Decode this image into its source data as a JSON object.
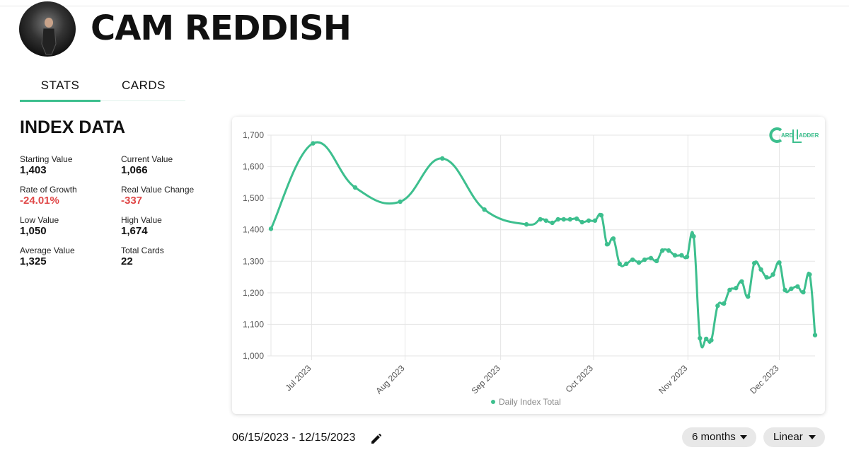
{
  "header": {
    "name": "CAM REDDISH"
  },
  "tabs": [
    "STATS",
    "CARDS"
  ],
  "index": {
    "title": "INDEX DATA",
    "stats": [
      {
        "label": "Starting Value",
        "value": "1,403"
      },
      {
        "label": "Current Value",
        "value": "1,066"
      },
      {
        "label": "Rate of Growth",
        "value": "-24.01%"
      },
      {
        "label": "Real Value Change",
        "value": "-337"
      },
      {
        "label": "Low Value",
        "value": "1,050"
      },
      {
        "label": "High Value",
        "value": "1,674"
      },
      {
        "label": "Average Value",
        "value": "1,325"
      },
      {
        "label": "Total Cards",
        "value": "22"
      }
    ]
  },
  "logo": [
    "ARD",
    "ADDER"
  ],
  "chart_data": {
    "type": "line",
    "x": [
      0,
      14,
      28,
      43,
      57,
      71,
      85,
      89.6,
      91.5,
      93.6,
      95.5,
      97.4,
      99.5,
      101.7,
      103.5,
      105.7,
      107.8,
      109.9,
      111.8,
      113.9,
      116,
      118.2,
      120.3,
      122.4,
      124.3,
      126.4,
      128.3,
      130.2,
      132.3,
      134.4,
      136.6,
      138.4,
      140.6,
      142.7,
      144.8,
      146.5,
      148.6,
      150.7,
      152.6,
      154.7,
      156.6,
      158.7,
      160.8,
      163,
      164.9,
      167,
      169.1,
      171,
      173.1,
      175.2,
      177.1,
      179.2,
      181
    ],
    "series": [
      {
        "name": "Daily Index Total",
        "color": "#3dbf8e",
        "values": [
          1403,
          1674,
          1534,
          1489,
          1626,
          1464,
          1417,
          1433,
          1429,
          1422,
          1433,
          1433,
          1433,
          1435,
          1424,
          1429,
          1429,
          1446,
          1354,
          1372,
          1292,
          1292,
          1305,
          1296,
          1305,
          1310,
          1301,
          1334,
          1334,
          1319,
          1319,
          1314,
          1379,
          1056,
          1054,
          1050,
          1159,
          1166,
          1209,
          1215,
          1236,
          1188,
          1294,
          1274,
          1249,
          1258,
          1296,
          1209,
          1213,
          1220,
          1202,
          1258,
          1066
        ]
      }
    ],
    "xlim": [
      0,
      181
    ],
    "xticks": [
      {
        "value": 13.5,
        "label": "Jul 2023"
      },
      {
        "value": 44.6,
        "label": "Aug 2023"
      },
      {
        "value": 76.4,
        "label": "Sep 2023"
      },
      {
        "value": 107.3,
        "label": "Oct 2023"
      },
      {
        "value": 138.7,
        "label": "Nov 2023"
      },
      {
        "value": 169.1,
        "label": "Dec 2023"
      }
    ],
    "ylim": [
      1000,
      1700
    ],
    "yticks": [
      {
        "value": 1000,
        "label": "1,000"
      },
      {
        "value": 1100,
        "label": "1,100"
      },
      {
        "value": 1200,
        "label": "1,200"
      },
      {
        "value": 1300,
        "label": "1,300"
      },
      {
        "value": 1400,
        "label": "1,400"
      },
      {
        "value": 1500,
        "label": "1,500"
      },
      {
        "value": 1600,
        "label": "1,600"
      },
      {
        "value": 1700,
        "label": "1,700"
      }
    ],
    "grid": true,
    "legend": "bottom"
  },
  "date_range": "06/15/2023 - 12/15/2023",
  "controls": [
    "6 months",
    "Linear"
  ]
}
